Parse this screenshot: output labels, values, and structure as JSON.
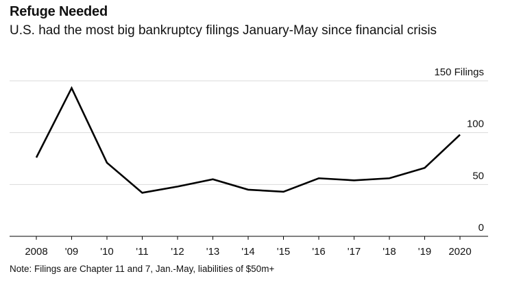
{
  "chart_data": {
    "type": "line",
    "title": "Refuge Needed",
    "subtitle": "U.S. had the most big bankruptcy filings January-May since financial crisis",
    "categories": [
      "2008",
      "'09",
      "'10",
      "'11",
      "'12",
      "'13",
      "'14",
      "'15",
      "'16",
      "'17",
      "'18",
      "'19",
      "2020"
    ],
    "series": [
      {
        "name": "Filings",
        "values": [
          76,
          143,
          71,
          42,
          48,
          55,
          45,
          43,
          56,
          54,
          56,
          66,
          98
        ]
      }
    ],
    "y_ticks": [
      0,
      50,
      100,
      150
    ],
    "y_tick_labels": [
      "0",
      "50",
      "100",
      "150 Filings"
    ],
    "ylim": [
      0,
      150
    ],
    "xlabel": "",
    "ylabel": "Filings",
    "grid": true,
    "y_axis_position": "right",
    "note": "Note: Filings are Chapter 11 and 7, Jan.-May, liabilities of $50m+",
    "colors": {
      "line": "#000000",
      "grid": "#d9d9d9",
      "axis": "#000000"
    }
  }
}
